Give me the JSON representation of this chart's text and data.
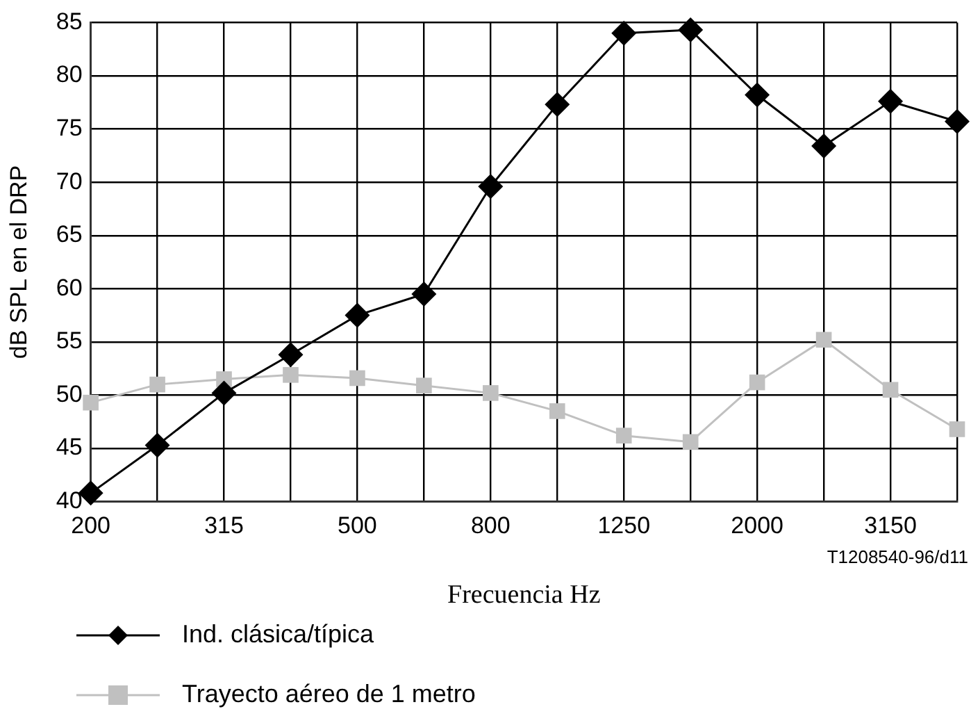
{
  "chart_data": {
    "type": "line",
    "categories": [
      "200",
      null,
      "315",
      null,
      "500",
      null,
      "800",
      null,
      "1250",
      null,
      "2000",
      null,
      "3150",
      null
    ],
    "series": [
      {
        "name": "Ind. clásica/típica",
        "color": "#000000",
        "marker": "diamond",
        "values": [
          40.8,
          45.3,
          50.2,
          53.8,
          57.5,
          59.5,
          69.6,
          77.3,
          84,
          84.3,
          78.2,
          73.4,
          77.6,
          75.7
        ]
      },
      {
        "name": "Trayecto aéreo de 1 metro",
        "color": "#c0c0c0",
        "marker": "square",
        "values": [
          49.3,
          51,
          51.5,
          51.9,
          51.6,
          50.9,
          50.2,
          48.5,
          46.2,
          45.6,
          51.2,
          55.2,
          50.5,
          46.8
        ]
      }
    ],
    "xlabel": "Frecuencia Hz",
    "ylabel": "dB SPL en el DRP",
    "ylim": [
      40,
      85
    ],
    "yticks": [
      40,
      45,
      50,
      55,
      60,
      65,
      70,
      75,
      80,
      85
    ],
    "grid": true,
    "legend": "bottom left",
    "line_style": "solid",
    "annotations": [
      "T1208540-96/d11"
    ]
  }
}
